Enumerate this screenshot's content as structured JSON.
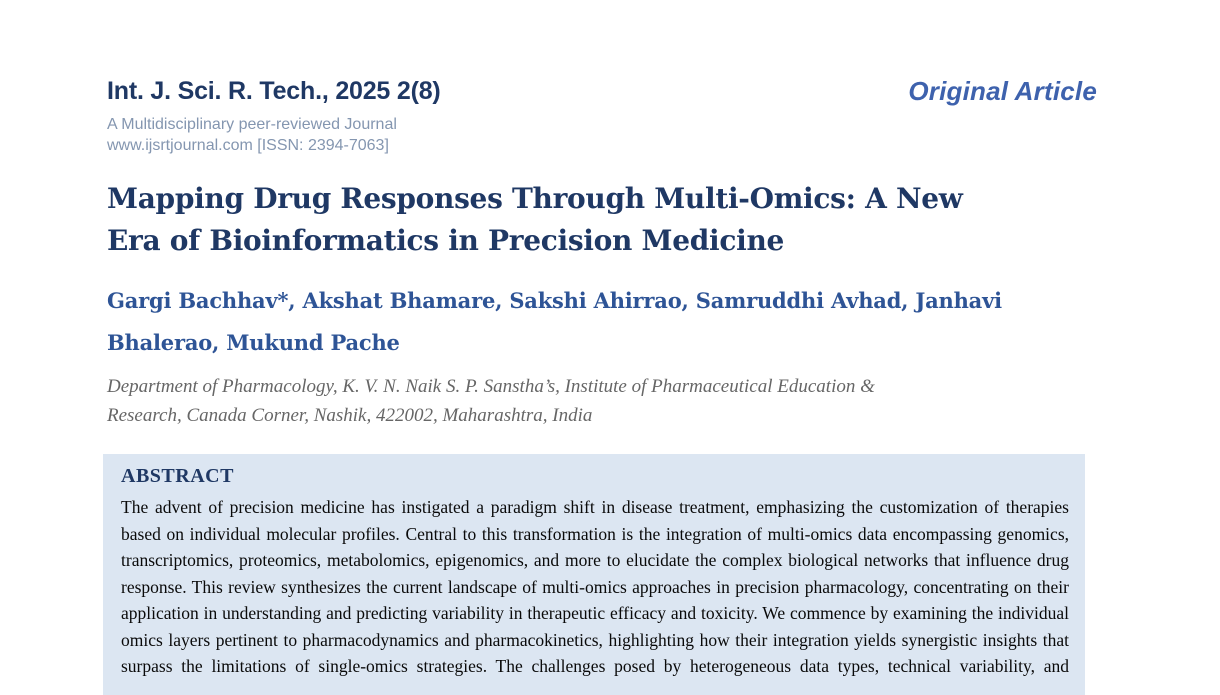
{
  "page": {
    "header": {
      "journal_title": "Int. J. Sci. R. Tech., 2025 2(8)",
      "journal_subtitle": "A Multidisciplinary peer-reviewed Journal",
      "journal_url_issn": "www.ijsrtjournal.com [ISSN: 2394-7063]",
      "article_type": "Original Article"
    },
    "article": {
      "title": "Mapping Drug Responses Through Multi-Omics: A New Era of Bioinformatics in Precision Medicine",
      "title_lines": [
        "Mapping Drug Responses Through Multi-Omics: A New",
        "Era of Bioinformatics in Precision Medicine"
      ],
      "authors": "Gargi Bachhav*, Akshat Bhamare, Sakshi Ahirrao, Samruddhi Avhad, Janhavi Bhalerao, Mukund Pache",
      "authors_lines": [
        "Gargi Bachhav*, Akshat Bhamare, Sakshi Ahirrao, Samruddhi Avhad, Janhavi",
        "Bhalerao, Mukund Pache"
      ],
      "affiliation_lines": [
        "Department of Pharmacology, K. V. N. Naik S. P. Sanstha’s, Institute of Pharmaceutical Education &",
        "Research, Canada Corner, Nashik, 422002, Maharashtra, India"
      ]
    },
    "abstract": {
      "heading": "ABSTRACT",
      "body": "The advent of precision medicine has instigated a paradigm shift in disease treatment, emphasizing the customization of therapies based on individual molecular profiles. Central to this transformation is the integration of multi-omics data encompassing genomics, transcriptomics, proteomics, metabolomics, epigenomics, and more to elucidate the complex biological networks that influence drug response. This review synthesizes the current landscape of multi-omics approaches in precision pharmacology, concentrating on their application in understanding and predicting variability in therapeutic efficacy and toxicity. We commence by examining the individual omics layers pertinent to pharmacodynamics and pharmacokinetics, highlighting how their integration yields synergistic insights that surpass the limitations of single-omics strategies. The challenges posed by heterogeneous data types, technical variability, and"
    },
    "colors": {
      "header_navy": "#1f3864",
      "title_navy": "#1f3864",
      "authors_blue": "#2e5496",
      "article_type_blue": "#3e62ad",
      "subtitle_blue_gray": "#8496b0",
      "affiliation_gray": "#666666",
      "abstract_background": "#dce6f2"
    }
  }
}
